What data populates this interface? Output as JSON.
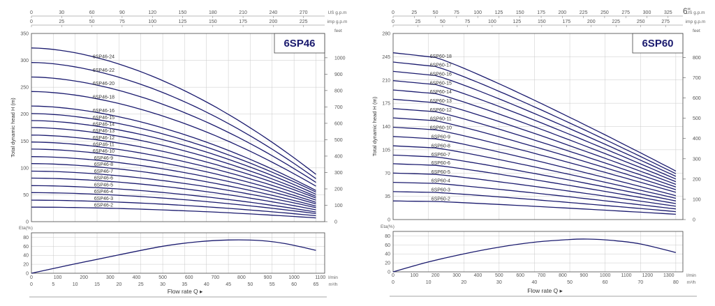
{
  "page_extra": {
    "size_label": "6\""
  },
  "chart_data": [
    {
      "type": "line",
      "model": "6SP46",
      "top_axis": {
        "us_label": "US g.p.m",
        "us_ticks": [
          "0",
          "30",
          "60",
          "90",
          "120",
          "150",
          "180",
          "210",
          "240",
          "270"
        ],
        "imp_label": "imp g.p.m",
        "imp_ticks": [
          "0",
          "25",
          "50",
          "75",
          "100",
          "125",
          "150",
          "175",
          "200",
          "225"
        ]
      },
      "ylabel": "Total dynamic head H (m)",
      "ylim": [
        0,
        350
      ],
      "yticks": [
        "0",
        "50",
        "100",
        "150",
        "200",
        "250",
        "300",
        "350"
      ],
      "feet_label": "feet",
      "feet_ticks": [
        "0",
        "100",
        "200",
        "300",
        "400",
        "500",
        "600",
        "700",
        "800",
        "900",
        "1000"
      ],
      "xlim": [
        0,
        67
      ],
      "q_max": 65,
      "series": [
        {
          "name": "6SP46-24",
          "h0": 323,
          "hend": 88
        },
        {
          "name": "6SP46-22",
          "h0": 296,
          "hend": 80
        },
        {
          "name": "6SP46-20",
          "h0": 269,
          "hend": 73
        },
        {
          "name": "6SP46-18",
          "h0": 242,
          "hend": 66
        },
        {
          "name": "6SP46-16",
          "h0": 215,
          "hend": 58
        },
        {
          "name": "6SP46-15",
          "h0": 201,
          "hend": 55
        },
        {
          "name": "6SP46-14",
          "h0": 188,
          "hend": 51
        },
        {
          "name": "6SP46-13",
          "h0": 175,
          "hend": 47
        },
        {
          "name": "6SP46-12",
          "h0": 161,
          "hend": 44
        },
        {
          "name": "6SP46-11",
          "h0": 148,
          "hend": 40
        },
        {
          "name": "6SP46-10",
          "h0": 135,
          "hend": 36
        },
        {
          "name": "6SP46-9",
          "h0": 121,
          "hend": 33
        },
        {
          "name": "6SP46-8",
          "h0": 108,
          "hend": 29
        },
        {
          "name": "6SP46-7",
          "h0": 94,
          "hend": 26
        },
        {
          "name": "6SP46-6",
          "h0": 81,
          "hend": 22
        },
        {
          "name": "6SP46-5",
          "h0": 67,
          "hend": 18
        },
        {
          "name": "6SP46-4",
          "h0": 54,
          "hend": 15
        },
        {
          "name": "6SP46-3",
          "h0": 40,
          "hend": 11
        },
        {
          "name": "6SP46-2",
          "h0": 27,
          "hend": 7
        }
      ],
      "eta": {
        "label": "Eta(%)",
        "ticks": [
          "0",
          "20",
          "40",
          "60",
          "80"
        ],
        "points": [
          [
            0,
            0
          ],
          [
            10,
            21
          ],
          [
            20,
            41
          ],
          [
            30,
            60
          ],
          [
            38,
            70
          ],
          [
            45,
            74
          ],
          [
            52,
            73
          ],
          [
            58,
            66
          ],
          [
            65,
            51
          ]
        ]
      },
      "bottom_axis": {
        "lmin_label": "l/min",
        "lmin_ticks": [
          "0",
          "100",
          "200",
          "300",
          "400",
          "500",
          "600",
          "700",
          "800",
          "900",
          "1000",
          "1100"
        ],
        "m3h_label": "m³/h",
        "m3h_ticks": [
          "0",
          "5",
          "10",
          "15",
          "20",
          "25",
          "30",
          "35",
          "40",
          "45",
          "50",
          "55",
          "60",
          "65"
        ]
      },
      "flow_label": "Flow rate Q"
    },
    {
      "type": "line",
      "model": "6SP60",
      "top_axis": {
        "us_label": "US g.p.m",
        "us_ticks": [
          "0",
          "25",
          "50",
          "75",
          "100",
          "125",
          "150",
          "175",
          "200",
          "225",
          "250",
          "275",
          "300",
          "325"
        ],
        "imp_label": "imp g.p.m",
        "imp_ticks": [
          "0",
          "25",
          "50",
          "75",
          "100",
          "125",
          "150",
          "175",
          "200",
          "225",
          "250",
          "275"
        ]
      },
      "ylabel": "Total dynamic head H (m)",
      "ylim": [
        0,
        280
      ],
      "yticks": [
        "0",
        "35",
        "70",
        "105",
        "140",
        "175",
        "210",
        "245",
        "280"
      ],
      "feet_label": "feet",
      "feet_ticks": [
        "0",
        "100",
        "200",
        "300",
        "400",
        "500",
        "600",
        "700",
        "800"
      ],
      "xlim": [
        0,
        82
      ],
      "q_max": 80,
      "series": [
        {
          "name": "6SP60-18",
          "h0": 251,
          "hend": 73
        },
        {
          "name": "6SP60-17",
          "h0": 237,
          "hend": 69
        },
        {
          "name": "6SP60-16",
          "h0": 223,
          "hend": 65
        },
        {
          "name": "6SP60-15",
          "h0": 209,
          "hend": 61
        },
        {
          "name": "6SP60-14",
          "h0": 195,
          "hend": 57
        },
        {
          "name": "6SP60-13",
          "h0": 181,
          "hend": 53
        },
        {
          "name": "6SP60-12",
          "h0": 167,
          "hend": 49
        },
        {
          "name": "6SP60-11",
          "h0": 153,
          "hend": 45
        },
        {
          "name": "6SP60-10",
          "h0": 139,
          "hend": 41
        },
        {
          "name": "6SP60-9",
          "h0": 125,
          "hend": 36
        },
        {
          "name": "6SP60-8",
          "h0": 111,
          "hend": 32
        },
        {
          "name": "6SP60-7",
          "h0": 97,
          "hend": 28
        },
        {
          "name": "6SP60-6",
          "h0": 84,
          "hend": 24
        },
        {
          "name": "6SP60-5",
          "h0": 70,
          "hend": 20
        },
        {
          "name": "6SP60-4",
          "h0": 56,
          "hend": 16
        },
        {
          "name": "6SP60-3",
          "h0": 42,
          "hend": 12
        },
        {
          "name": "6SP60-2",
          "h0": 28,
          "hend": 8
        }
      ],
      "eta": {
        "label": "Eta(%)",
        "ticks": [
          "0",
          "20",
          "40",
          "60",
          "80"
        ],
        "points": [
          [
            0,
            0
          ],
          [
            10,
            22
          ],
          [
            20,
            40
          ],
          [
            30,
            55
          ],
          [
            40,
            66
          ],
          [
            50,
            72
          ],
          [
            55,
            73
          ],
          [
            62,
            70
          ],
          [
            70,
            62
          ],
          [
            80,
            43
          ]
        ]
      },
      "bottom_axis": {
        "lmin_label": "l/min",
        "lmin_ticks": [
          "0",
          "100",
          "200",
          "300",
          "400",
          "500",
          "600",
          "700",
          "800",
          "900",
          "1000",
          "1100",
          "1200",
          "1300"
        ],
        "m3h_label": "m³/h",
        "m3h_ticks": [
          "0",
          "10",
          "20",
          "30",
          "40",
          "50",
          "60",
          "70",
          "80"
        ]
      },
      "flow_label": "Flow rate Q"
    }
  ]
}
